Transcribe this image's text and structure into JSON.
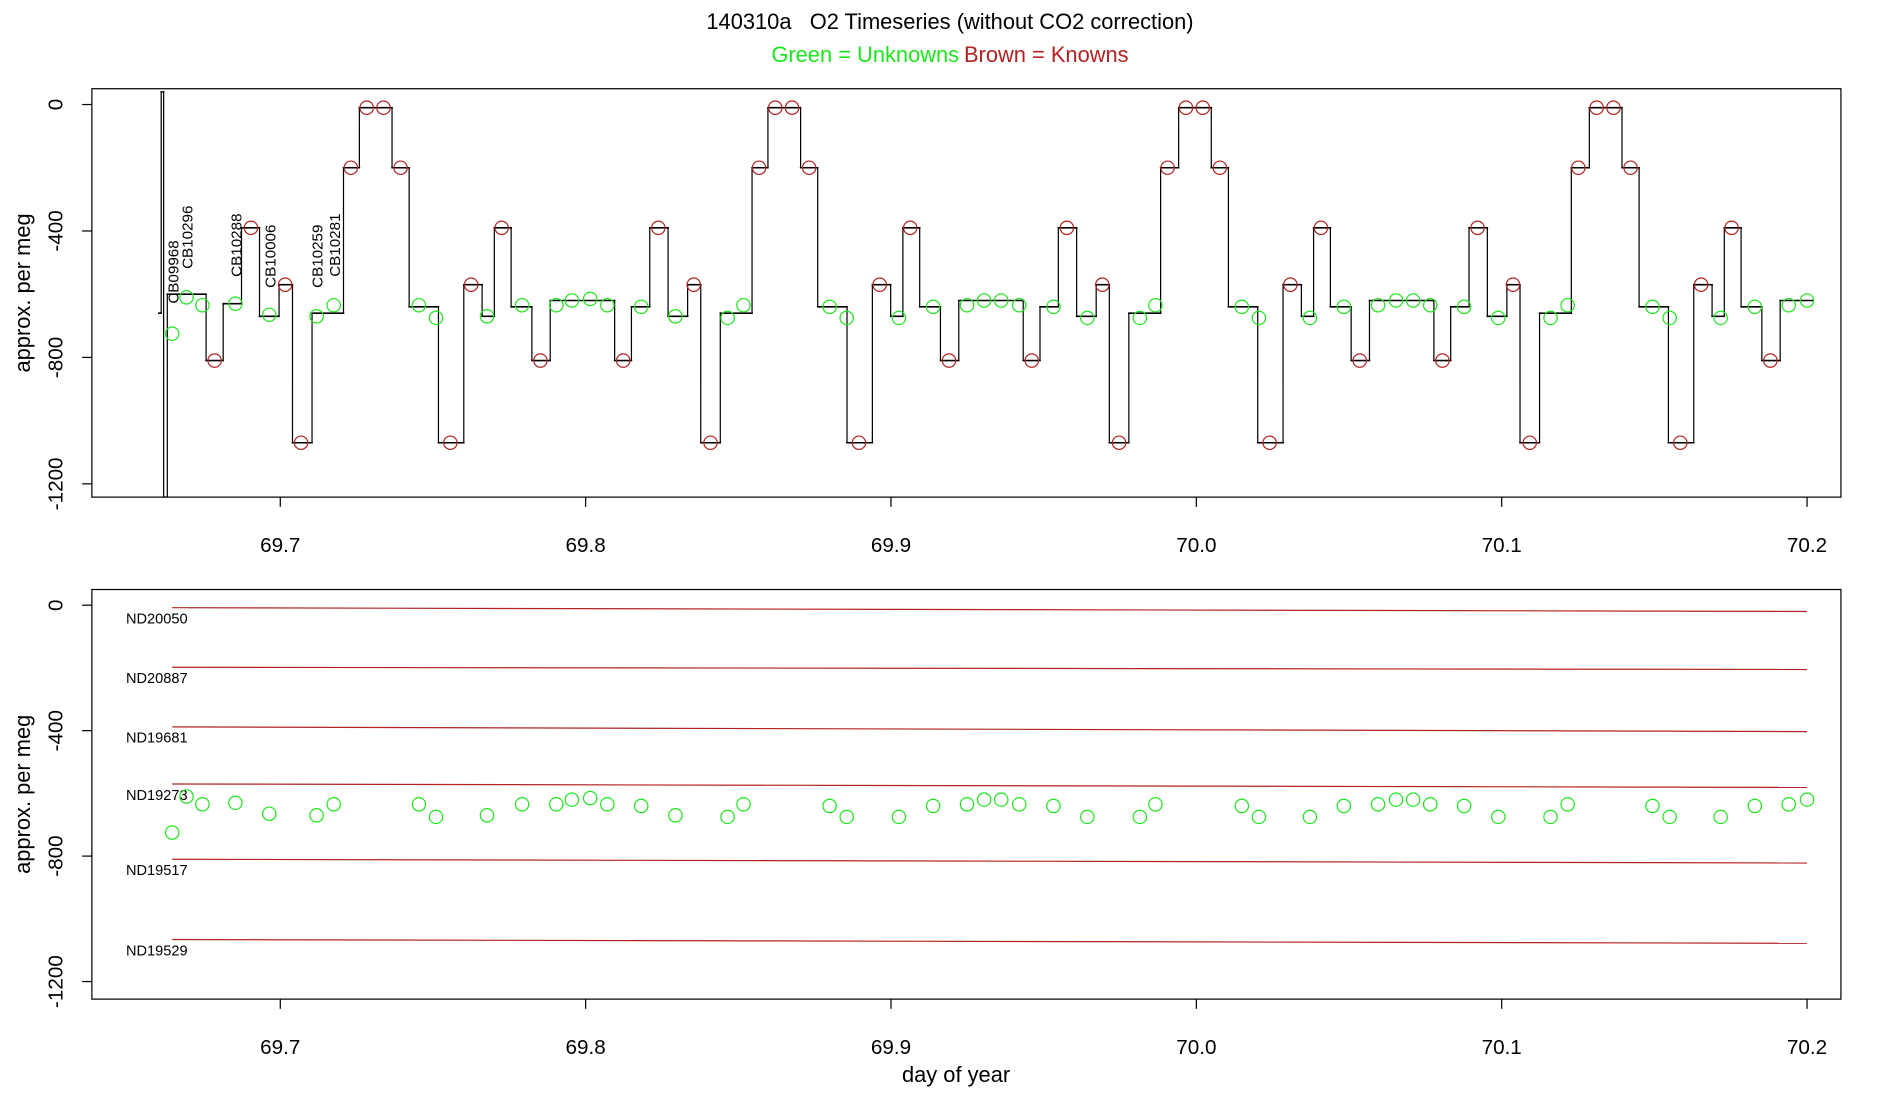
{
  "chart_data": [
    {
      "type": "line",
      "step": true,
      "title": "140310a   O2 Timeseries (without CO2 correction)",
      "subtitle": [
        {
          "text": "Green = Unknowns",
          "color": "#1ee61e"
        },
        {
          "text": "Brown = Knowns",
          "color": "#b22222"
        }
      ],
      "ylabel": "approx. per meg",
      "xlim": [
        69.6383,
        70.2111
      ],
      "ylim": [
        -1242,
        50
      ],
      "xticks": [
        69.7,
        69.8,
        69.9,
        {
          "value": 70,
          "label": "70.0"
        },
        70.1,
        70.2
      ],
      "yticks": [
        0,
        -400,
        -800,
        -1200
      ],
      "series": [
        {
          "color": "#000000",
          "x": [
            69.6602,
            69.661,
            69.6618,
            69.663,
            69.6757,
            69.6813,
            69.6873,
            69.6932,
            69.6996,
            69.704,
            69.7104,
            69.7207,
            69.7259,
            69.7366,
            69.7422,
            69.7518,
            69.7601,
            69.7661,
            69.7701,
            69.7756,
            69.7824,
            69.7884,
            69.8095,
            69.815,
            69.821,
            69.827,
            69.8334,
            69.8377,
            69.8441,
            69.8545,
            69.8597,
            69.8704,
            69.876,
            69.8856,
            69.8939,
            69.8999,
            69.9039,
            69.9094,
            69.9162,
            69.9222,
            69.9433,
            69.9488,
            69.9548,
            69.9608,
            69.9672,
            69.9715,
            69.9779,
            69.9883,
            69.9942,
            70.0049,
            70.0105,
            70.0201,
            70.0284,
            70.0344,
            70.0384,
            70.0439,
            70.0507,
            70.0567,
            70.0778,
            70.0833,
            70.0893,
            70.0953,
            70.1017,
            70.106,
            70.1124,
            70.1228,
            70.1287,
            70.1394,
            70.145,
            70.1546,
            70.1629,
            70.1689,
            70.1729,
            70.1784,
            70.1852,
            70.1912,
            70.202
          ],
          "values": [
            -660,
            40,
            -1242,
            -600,
            -810,
            -630,
            -390,
            -670,
            -570,
            -1070,
            -660,
            -200,
            -10,
            -200,
            -640,
            -1070,
            -570,
            -670,
            -390,
            -640,
            -810,
            -620,
            -810,
            -640,
            -390,
            -670,
            -570,
            -1070,
            -660,
            -200,
            -10,
            -200,
            -640,
            -1070,
            -570,
            -670,
            -390,
            -640,
            -810,
            -620,
            -810,
            -640,
            -390,
            -670,
            -570,
            -1070,
            -660,
            -200,
            -10,
            -200,
            -640,
            -1070,
            -570,
            -670,
            -390,
            -640,
            -810,
            -620,
            -810,
            -640,
            -390,
            -670,
            -570,
            -1070,
            -660,
            -200,
            -10,
            -200,
            -640,
            -1070,
            -570,
            -670,
            -390,
            -640,
            -810,
            -620,
            -620
          ]
        }
      ],
      "points": [
        {
          "color": "#b22222",
          "x": [
            69.6785,
            69.6904,
            69.7016,
            69.7068,
            69.7231,
            69.7283,
            69.7338,
            69.7394,
            69.7557,
            69.7625,
            69.7725,
            69.7852,
            69.8123,
            69.8238,
            69.8354,
            69.8409,
            69.8568,
            69.8621,
            69.8676,
            69.8732,
            69.8895,
            69.8963,
            69.9063,
            69.919,
            69.9461,
            69.9576,
            69.9692,
            69.9747,
            69.9906,
            69.9966,
            70.0021,
            70.0077,
            70.024,
            70.0308,
            70.0408,
            70.0535,
            70.0806,
            70.0921,
            70.1037,
            70.1092,
            70.1251,
            70.1311,
            70.1366,
            70.1422,
            70.1585,
            70.1653,
            70.1753,
            70.188
          ],
          "values": [
            -810,
            -390,
            -570,
            -1070,
            -200,
            -10,
            -10,
            -200,
            -1070,
            -570,
            -390,
            -810,
            -810,
            -390,
            -570,
            -1070,
            -200,
            -10,
            -10,
            -200,
            -1070,
            -570,
            -390,
            -810,
            -810,
            -390,
            -570,
            -1070,
            -200,
            -10,
            -10,
            -200,
            -1070,
            -570,
            -390,
            -810,
            -810,
            -390,
            -570,
            -1070,
            -200,
            -10,
            -10,
            -200,
            -1070,
            -570,
            -390,
            -810
          ]
        },
        {
          "color": "#1ee61e",
          "x": [
            69.6646,
            69.6693,
            69.6745,
            69.6853,
            69.6964,
            69.7119,
            69.7175,
            69.7454,
            69.751,
            69.7677,
            69.7792,
            69.7904,
            69.7955,
            69.8015,
            69.8071,
            69.8182,
            69.8294,
            69.8465,
            69.8517,
            69.8799,
            69.8855,
            69.9026,
            69.9138,
            69.9249,
            69.9305,
            69.9361,
            69.942,
            69.9532,
            69.9643,
            69.9815,
            69.9866,
            70.0149,
            70.0205,
            70.0372,
            70.0483,
            70.0595,
            70.0654,
            70.071,
            70.0766,
            70.0877,
            70.0989,
            70.116,
            70.1216,
            70.1494,
            70.155,
            70.1717,
            70.1829,
            70.194,
            70.2
          ],
          "values": [
            -725,
            -610,
            -635,
            -630,
            -665,
            -670,
            -635,
            -635,
            -675,
            -670,
            -635,
            -635,
            -620,
            -615,
            -635,
            -640,
            -670,
            -675,
            -635,
            -640,
            -675,
            -675,
            -640,
            -635,
            -620,
            -620,
            -635,
            -640,
            -675,
            -675,
            -635,
            -640,
            -675,
            -675,
            -640,
            -635,
            -620,
            -620,
            -635,
            -640,
            -675,
            -675,
            -635,
            -640,
            -675,
            -675,
            -640,
            -635,
            -620
          ]
        }
      ],
      "annotations": [
        {
          "text": "CB09968",
          "x": 69.6646,
          "y": -630,
          "color": "#1ee61e"
        },
        {
          "text": "CB10296",
          "x": 69.6693,
          "y": -520,
          "color": "#1ee61e"
        },
        {
          "text": "CB10288",
          "x": 69.6853,
          "y": -545,
          "color": "#1ee61e"
        },
        {
          "text": "CB10006",
          "x": 69.6964,
          "y": -580,
          "color": "#1ee61e"
        },
        {
          "text": "CB10259",
          "x": 69.7119,
          "y": -580,
          "color": "#1ee61e"
        },
        {
          "text": "CB10281",
          "x": 69.7175,
          "y": -545,
          "color": "#1ee61e"
        }
      ]
    },
    {
      "type": "line",
      "ylabel": "approx. per meg",
      "xlabel": "day of year",
      "xlim": [
        69.6383,
        70.2111
      ],
      "ylim": [
        -1256,
        50
      ],
      "xticks": [
        69.7,
        69.8,
        69.9,
        {
          "value": 70,
          "label": "70.0"
        },
        70.1,
        70.2
      ],
      "yticks": [
        0,
        -400,
        -800,
        -1200
      ],
      "series": [
        {
          "name": "ND20050",
          "color": "#b22222",
          "x": [
            69.6646,
            70.2
          ],
          "values": [
            -8,
            -20
          ]
        },
        {
          "name": "ND20887",
          "color": "#b22222",
          "x": [
            69.6646,
            70.2
          ],
          "values": [
            -198,
            -205
          ]
        },
        {
          "name": "ND19681",
          "color": "#b22222",
          "x": [
            69.6646,
            70.2
          ],
          "values": [
            -388,
            -403
          ]
        },
        {
          "name": "ND19273",
          "color": "#b22222",
          "x": [
            69.6646,
            70.2
          ],
          "values": [
            -570,
            -581
          ]
        },
        {
          "name": "ND19517",
          "color": "#b22222",
          "x": [
            69.6646,
            70.2
          ],
          "values": [
            -810,
            -822
          ]
        },
        {
          "name": "ND19529",
          "color": "#b22222",
          "x": [
            69.6646,
            70.2
          ],
          "values": [
            -1066,
            -1078
          ]
        }
      ],
      "points": [
        {
          "color": "#1ee61e",
          "x": [
            69.6646,
            69.6693,
            69.6745,
            69.6853,
            69.6964,
            69.7119,
            69.7175,
            69.7454,
            69.751,
            69.7677,
            69.7792,
            69.7904,
            69.7955,
            69.8015,
            69.8071,
            69.8182,
            69.8294,
            69.8465,
            69.8517,
            69.8799,
            69.8855,
            69.9026,
            69.9138,
            69.9249,
            69.9305,
            69.9361,
            69.942,
            69.9532,
            69.9643,
            69.9815,
            69.9866,
            70.0149,
            70.0205,
            70.0372,
            70.0483,
            70.0595,
            70.0654,
            70.071,
            70.0766,
            70.0877,
            70.0989,
            70.116,
            70.1216,
            70.1494,
            70.155,
            70.1717,
            70.1829,
            70.194,
            70.2
          ],
          "values": [
            -725,
            -610,
            -635,
            -630,
            -665,
            -670,
            -635,
            -635,
            -675,
            -670,
            -635,
            -635,
            -620,
            -615,
            -635,
            -640,
            -670,
            -675,
            -635,
            -640,
            -675,
            -675,
            -640,
            -635,
            -620,
            -620,
            -635,
            -640,
            -675,
            -675,
            -635,
            -640,
            -675,
            -675,
            -640,
            -635,
            -620,
            -620,
            -635,
            -640,
            -675,
            -675,
            -635,
            -640,
            -675,
            -675,
            -640,
            -635,
            -620
          ]
        }
      ]
    }
  ]
}
